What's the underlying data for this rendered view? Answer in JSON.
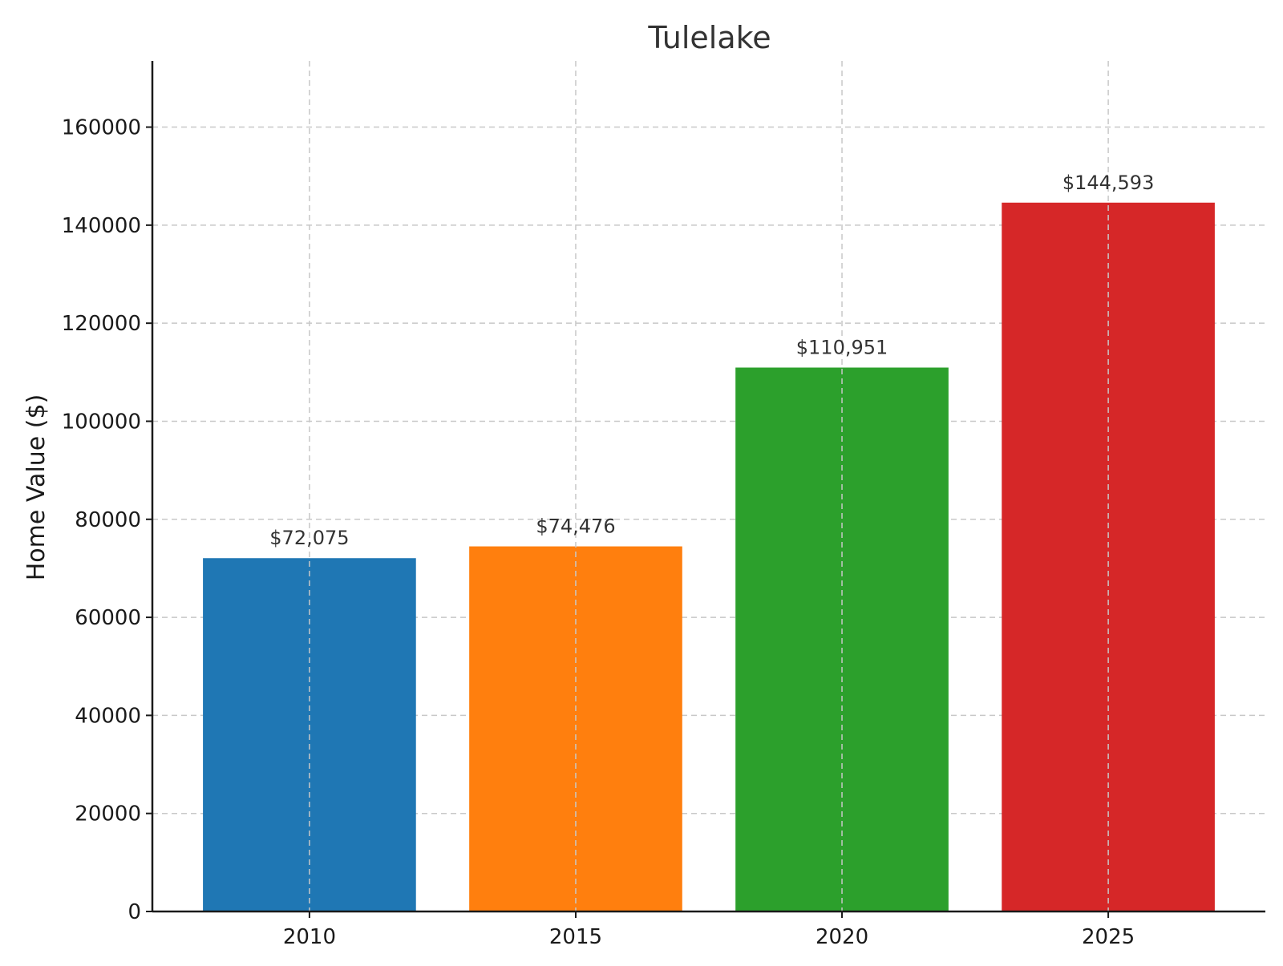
{
  "chart_data": {
    "type": "bar",
    "title": "Tulelake",
    "xlabel": "",
    "ylabel": "Home Value ($)",
    "categories": [
      "2010",
      "2015",
      "2020",
      "2025"
    ],
    "values": [
      72075,
      74476,
      110951,
      144593
    ],
    "data_labels": [
      "$72,075",
      "$74,476",
      "$110,951",
      "$144,593"
    ],
    "bar_colors": [
      "#1f77b4",
      "#ff7f0e",
      "#2ca02c",
      "#d62728"
    ],
    "ylim": [
      0,
      173500
    ],
    "yticks": [
      0,
      20000,
      40000,
      60000,
      80000,
      100000,
      120000,
      140000,
      160000
    ],
    "grid": true,
    "legend": "none"
  }
}
